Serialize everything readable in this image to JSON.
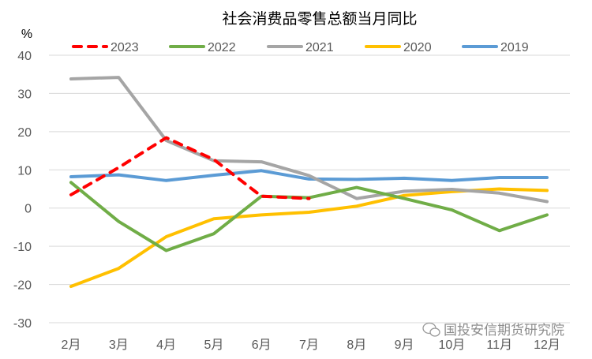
{
  "chart_data": {
    "type": "line",
    "title": "社会消费品零售总额当月同比",
    "ylabel": "%",
    "ylim": [
      -30,
      40
    ],
    "yticks": [
      40,
      30,
      20,
      10,
      0,
      -10,
      -20,
      -30
    ],
    "grid": true,
    "legend": "top",
    "categories": [
      "2月",
      "3月",
      "4月",
      "5月",
      "6月",
      "7月",
      "8月",
      "9月",
      "10月",
      "11月",
      "12月"
    ],
    "series": [
      {
        "name": "2023",
        "color": "#FF0000",
        "dashed": true,
        "values": [
          3.5,
          10.6,
          18.4,
          12.7,
          3.1,
          2.5,
          null,
          null,
          null,
          null,
          null
        ]
      },
      {
        "name": "2022",
        "color": "#70AD47",
        "dashed": false,
        "values": [
          6.7,
          -3.5,
          -11.1,
          -6.7,
          3.1,
          2.7,
          5.4,
          2.5,
          -0.5,
          -5.9,
          -1.8
        ]
      },
      {
        "name": "2021",
        "color": "#A5A5A5",
        "dashed": false,
        "values": [
          33.8,
          34.2,
          17.7,
          12.4,
          12.1,
          8.5,
          2.5,
          4.4,
          4.9,
          3.9,
          1.7
        ]
      },
      {
        "name": "2020",
        "color": "#FFC000",
        "dashed": false,
        "values": [
          -20.5,
          -15.8,
          -7.5,
          -2.8,
          -1.8,
          -1.1,
          0.5,
          3.3,
          4.3,
          5.0,
          4.6
        ]
      },
      {
        "name": "2019",
        "color": "#5B9BD5",
        "dashed": false,
        "values": [
          8.2,
          8.7,
          7.2,
          8.6,
          9.8,
          7.6,
          7.5,
          7.8,
          7.2,
          8.0,
          8.0
        ]
      }
    ]
  },
  "watermark": "国投安信期货研究院"
}
